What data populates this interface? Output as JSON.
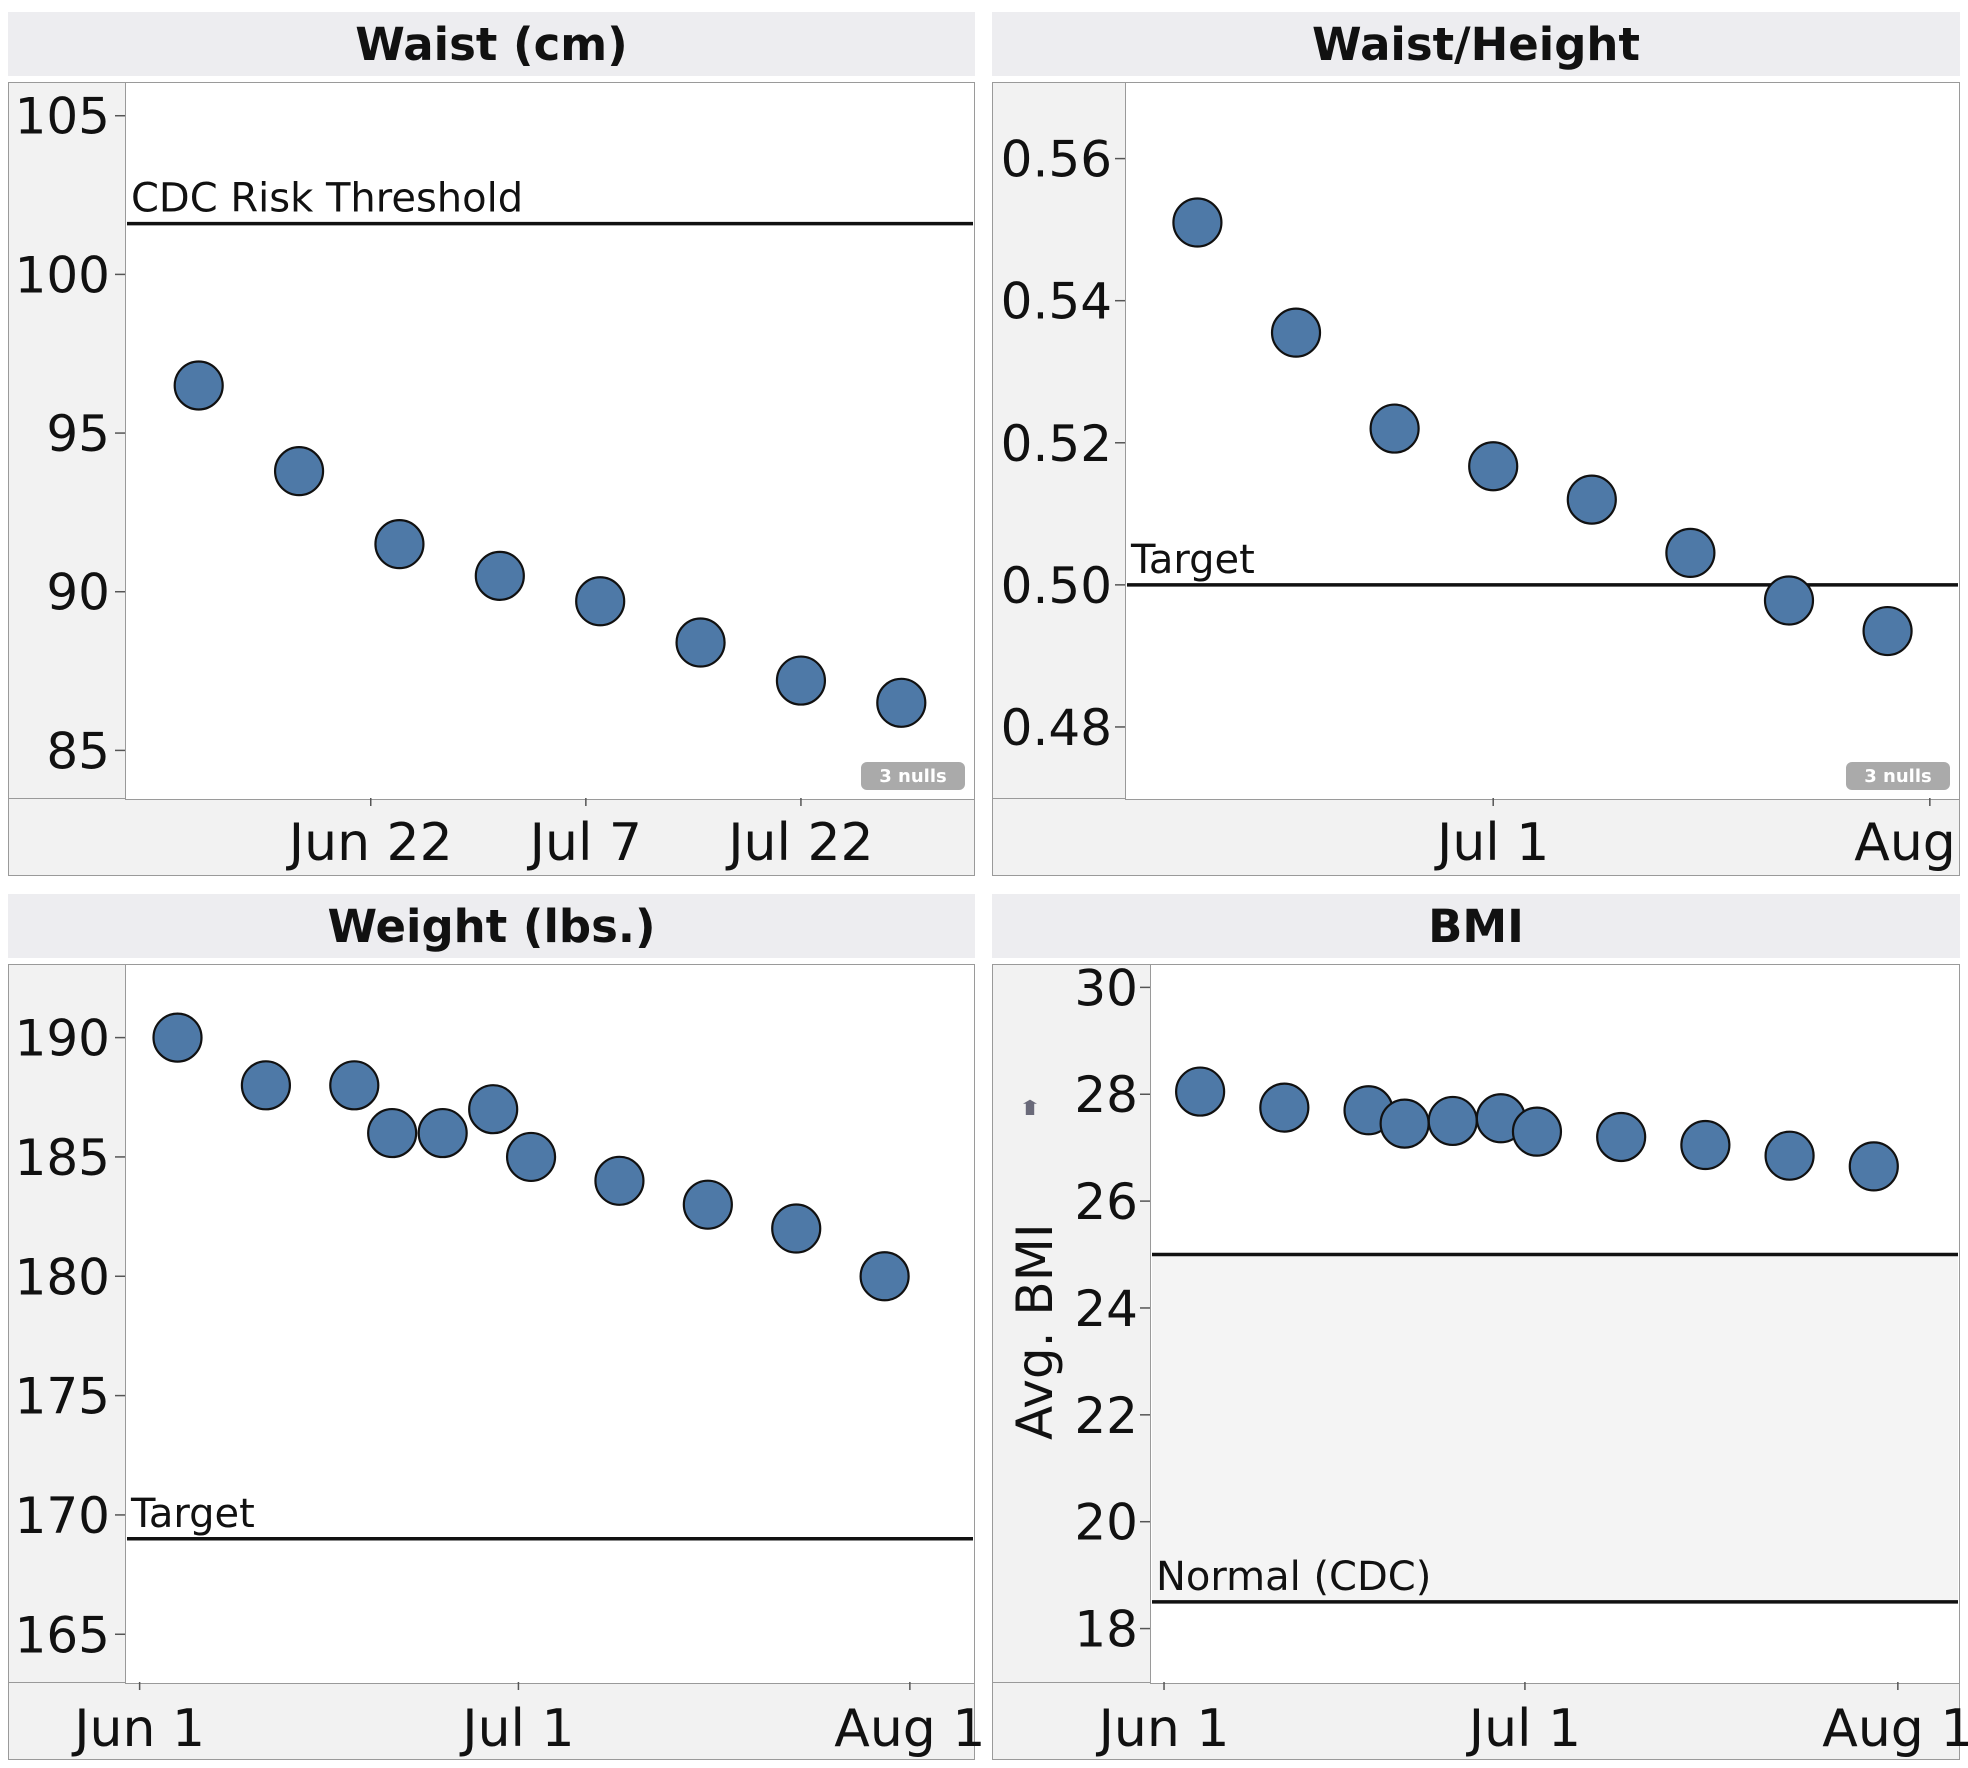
{
  "null_badge": "3 nulls",
  "chart_data": [
    {
      "id": "waist",
      "type": "scatter",
      "title": "Waist (cm)",
      "ylim": [
        83.5,
        106
      ],
      "yticks": [
        85,
        90,
        95,
        100,
        105
      ],
      "x_dates": [
        "2013-06-10",
        "2013-06-17",
        "2013-06-24",
        "2013-07-01",
        "2013-07-08",
        "2013-07-15",
        "2013-07-22",
        "2013-07-29"
      ],
      "xlim_dates": [
        "2013-06-05",
        "2013-08-03"
      ],
      "xticks": [
        {
          "date": "2013-06-22",
          "label": "Jun 22"
        },
        {
          "date": "2013-07-07",
          "label": "Jul 7"
        },
        {
          "date": "2013-07-22",
          "label": "Jul 22"
        }
      ],
      "values": [
        96.5,
        93.8,
        91.5,
        90.5,
        89.7,
        88.4,
        87.2,
        86.5
      ],
      "reference_lines": [
        {
          "value": 101.6,
          "label": "CDC Risk Threshold"
        }
      ],
      "shaded_band": null,
      "null_count_badge": true
    },
    {
      "id": "waist_height",
      "type": "scatter",
      "title": "Waist/Height",
      "ylim": [
        0.47,
        0.5705
      ],
      "yticks": [
        0.48,
        0.5,
        0.52,
        0.54,
        0.56
      ],
      "ytick_labels": [
        "0.48",
        "0.50",
        "0.52",
        "0.54",
        "0.56"
      ],
      "x_dates": [
        "2013-06-10",
        "2013-06-17",
        "2013-06-24",
        "2013-07-01",
        "2013-07-08",
        "2013-07-15",
        "2013-07-22",
        "2013-07-29"
      ],
      "xlim_dates": [
        "2013-06-05",
        "2013-08-03"
      ],
      "xticks": [
        {
          "date": "2013-07-01",
          "label": "Jul 1"
        },
        {
          "date": "2013-08-01",
          "label": "Aug 1"
        }
      ],
      "values": [
        0.551,
        0.5355,
        0.522,
        0.5167,
        0.512,
        0.5045,
        0.4978,
        0.4935
      ],
      "reference_lines": [
        {
          "value": 0.5,
          "label": "Target"
        }
      ],
      "shaded_band": null,
      "null_count_badge": true
    },
    {
      "id": "weight",
      "type": "scatter",
      "title": "Weight (lbs.)",
      "ylim": [
        163,
        193
      ],
      "yticks": [
        165,
        170,
        175,
        180,
        185,
        190
      ],
      "x_dates": [
        "2013-06-04",
        "2013-06-11",
        "2013-06-18",
        "2013-06-21",
        "2013-06-25",
        "2013-06-29",
        "2013-07-02",
        "2013-07-09",
        "2013-07-16",
        "2013-07-23",
        "2013-07-30"
      ],
      "xlim_dates": [
        "2013-05-31",
        "2013-08-06"
      ],
      "xticks": [
        {
          "date": "2013-06-01",
          "label": "Jun 1"
        },
        {
          "date": "2013-07-01",
          "label": "Jul 1"
        },
        {
          "date": "2013-08-01",
          "label": "Aug 1"
        }
      ],
      "values": [
        190,
        188,
        188,
        186,
        186,
        187,
        185,
        184,
        183,
        182,
        180
      ],
      "reference_lines": [
        {
          "value": 169,
          "label": "Target"
        }
      ],
      "shaded_band": null,
      "null_count_badge": false
    },
    {
      "id": "bmi",
      "type": "scatter",
      "title": "BMI",
      "ylabel": "Avg. BMI",
      "ylim": [
        17,
        30.4
      ],
      "yticks": [
        18,
        20,
        22,
        24,
        26,
        28,
        30
      ],
      "x_dates": [
        "2013-06-04",
        "2013-06-11",
        "2013-06-18",
        "2013-06-21",
        "2013-06-25",
        "2013-06-29",
        "2013-07-02",
        "2013-07-09",
        "2013-07-16",
        "2013-07-23",
        "2013-07-30"
      ],
      "xlim_dates": [
        "2013-05-31",
        "2013-08-06"
      ],
      "xticks": [
        {
          "date": "2013-06-01",
          "label": "Jun 1"
        },
        {
          "date": "2013-07-01",
          "label": "Jul 1"
        },
        {
          "date": "2013-08-01",
          "label": "Aug 1"
        }
      ],
      "values": [
        28.05,
        27.75,
        27.7,
        27.45,
        27.5,
        27.55,
        27.3,
        27.2,
        27.05,
        26.85,
        26.65
      ],
      "reference_lines": [
        {
          "value": 25,
          "label": ""
        },
        {
          "value": 18.5,
          "label": "Normal (CDC)"
        }
      ],
      "shaded_band": [
        18.5,
        25
      ],
      "null_count_badge": false
    }
  ]
}
